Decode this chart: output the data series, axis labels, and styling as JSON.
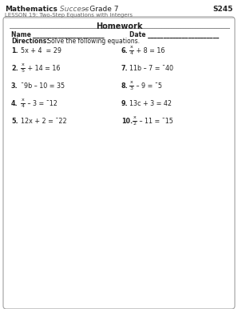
{
  "bg_color": "#ffffff",
  "text_color": "#222222",
  "gray_text": "#666666",
  "border_color": "#999999",
  "dot_color": "#888888",
  "header_bold": "Mathematics",
  "header_italic": " Success",
  "header_rest": " – Grade 7",
  "header_right": "S245",
  "subtitle": "LESSON 19: Two-Step Equations with Integers",
  "hw_title": "Homework",
  "name_line": "Name _______________________",
  "date_line": "Date _______________________",
  "dir_bold": "Directions:",
  "dir_rest": " Solve the following equations.",
  "left_nums": [
    "1.",
    "2.",
    "3.",
    "4.",
    "5."
  ],
  "left_eqs": [
    "5x + 4  = 29",
    "x/5 + 14 = 16",
    "¯9b – 10 = 35",
    "x/4 – 3 = ¯12",
    "12x + 2 = ¯22"
  ],
  "right_nums": [
    "6.",
    "7.",
    "8.",
    "9.",
    "10."
  ],
  "right_eqs": [
    "x/4 + 8 = 16",
    "11b – 7 = ¯40",
    "x/3 – 9 = ¯5",
    "13c + 3 = 42",
    "x/2 – 11 = ¯15"
  ],
  "frac_left": [
    false,
    true,
    false,
    true,
    false
  ],
  "frac_right": [
    true,
    false,
    true,
    false,
    true
  ],
  "frac_left_num": [
    "",
    "x",
    "",
    "x",
    ""
  ],
  "frac_left_den": [
    "",
    "5",
    "",
    "4",
    ""
  ],
  "frac_right_num": [
    "x",
    "",
    "x",
    "",
    "x"
  ],
  "frac_right_den": [
    "4",
    "",
    "3",
    "",
    "2"
  ],
  "frac_left_rest": [
    "",
    " + 14 = 16",
    "",
    " – 3 = ¯12",
    ""
  ],
  "frac_right_rest": [
    " + 8 = 16",
    "",
    " – 9 = ¯5",
    "",
    " – 11 = ¯15"
  ]
}
